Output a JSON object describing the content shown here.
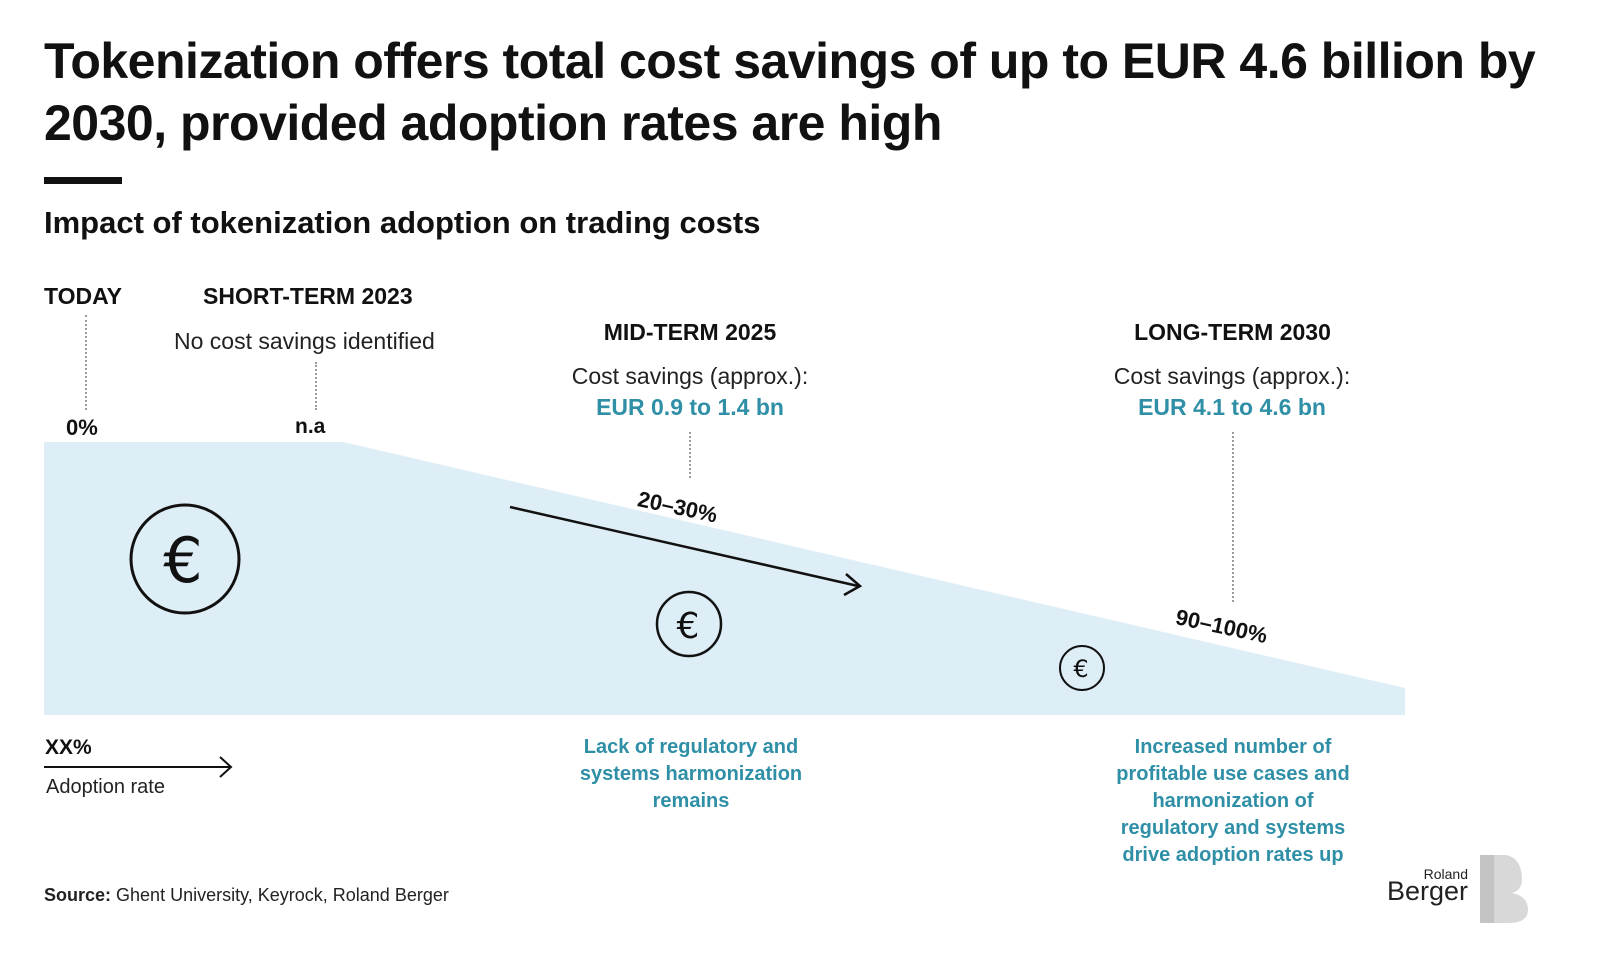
{
  "title": "Tokenization offers total cost savings of up to EUR 4.6 billion by 2030, provided adoption rates are high",
  "subtitle": "Impact of tokenization adoption on trading costs",
  "phases": {
    "today": {
      "label": "TODAY",
      "adoption": "0%"
    },
    "short_term": {
      "label": "SHORT-TERM 2023",
      "note": "No cost savings identified",
      "adoption": "n.a"
    },
    "mid_term": {
      "label": "MID-TERM 2025",
      "savings_label": "Cost savings (approx.):",
      "savings_value": "EUR 0.9 to 1.4 bn",
      "adoption": "20–30%",
      "driver": "Lack of regulatory and systems harmonization remains"
    },
    "long_term": {
      "label": "LONG-TERM 2030",
      "savings_label": "Cost savings (approx.):",
      "savings_value": "EUR 4.1 to 4.6 bn",
      "adoption": "90–100%",
      "driver": "Increased number of profitable use cases and harmonization of regulatory and systems drive adoption rates up"
    }
  },
  "icons": [
    "euro-icon",
    "arrow-icon"
  ],
  "euro_symbol": "€",
  "legend": {
    "value": "XX%",
    "label": "Adoption rate"
  },
  "source": {
    "prefix": "Source:",
    "text": " Ghent University, Keyrock, Roland Berger"
  },
  "logo": {
    "line1": "Roland",
    "line2": "Berger"
  },
  "colors": {
    "area": "#deeef6",
    "accent": "#2f8fa6",
    "text": "#111111"
  }
}
